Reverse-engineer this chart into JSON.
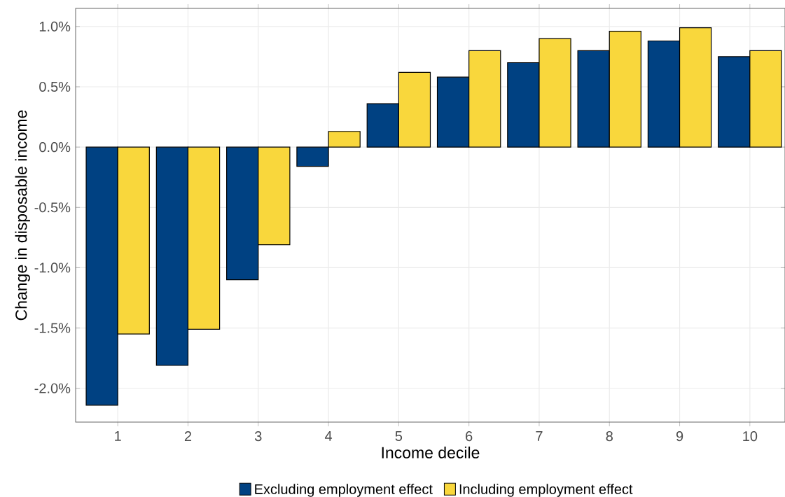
{
  "chart_data": {
    "type": "bar",
    "xlabel": "Income decile",
    "ylabel": "Change in disposable income",
    "categories": [
      "1",
      "2",
      "3",
      "4",
      "5",
      "6",
      "7",
      "8",
      "9",
      "10"
    ],
    "series": [
      {
        "name": "Excluding employment effect",
        "color": "#004182",
        "values": [
          -2.14,
          -1.81,
          -1.1,
          -0.16,
          0.36,
          0.58,
          0.7,
          0.8,
          0.88,
          0.75
        ]
      },
      {
        "name": "Including employment effect",
        "color": "#f9d73c",
        "values": [
          -1.55,
          -1.51,
          -0.81,
          0.13,
          0.62,
          0.8,
          0.9,
          0.96,
          0.99,
          0.8
        ]
      }
    ],
    "ylim": [
      -2.28,
      1.15
    ],
    "yticks": [
      {
        "value": -2.0,
        "label": "-2.0%"
      },
      {
        "value": -1.5,
        "label": "-1.5%"
      },
      {
        "value": -1.0,
        "label": "-1.0%"
      },
      {
        "value": -0.5,
        "label": "-0.5%"
      },
      {
        "value": 0.0,
        "label": "0.0%"
      },
      {
        "value": 0.5,
        "label": "0.5%"
      },
      {
        "value": 1.0,
        "label": "1.0%"
      }
    ],
    "grid": true,
    "legend": "bottom"
  }
}
